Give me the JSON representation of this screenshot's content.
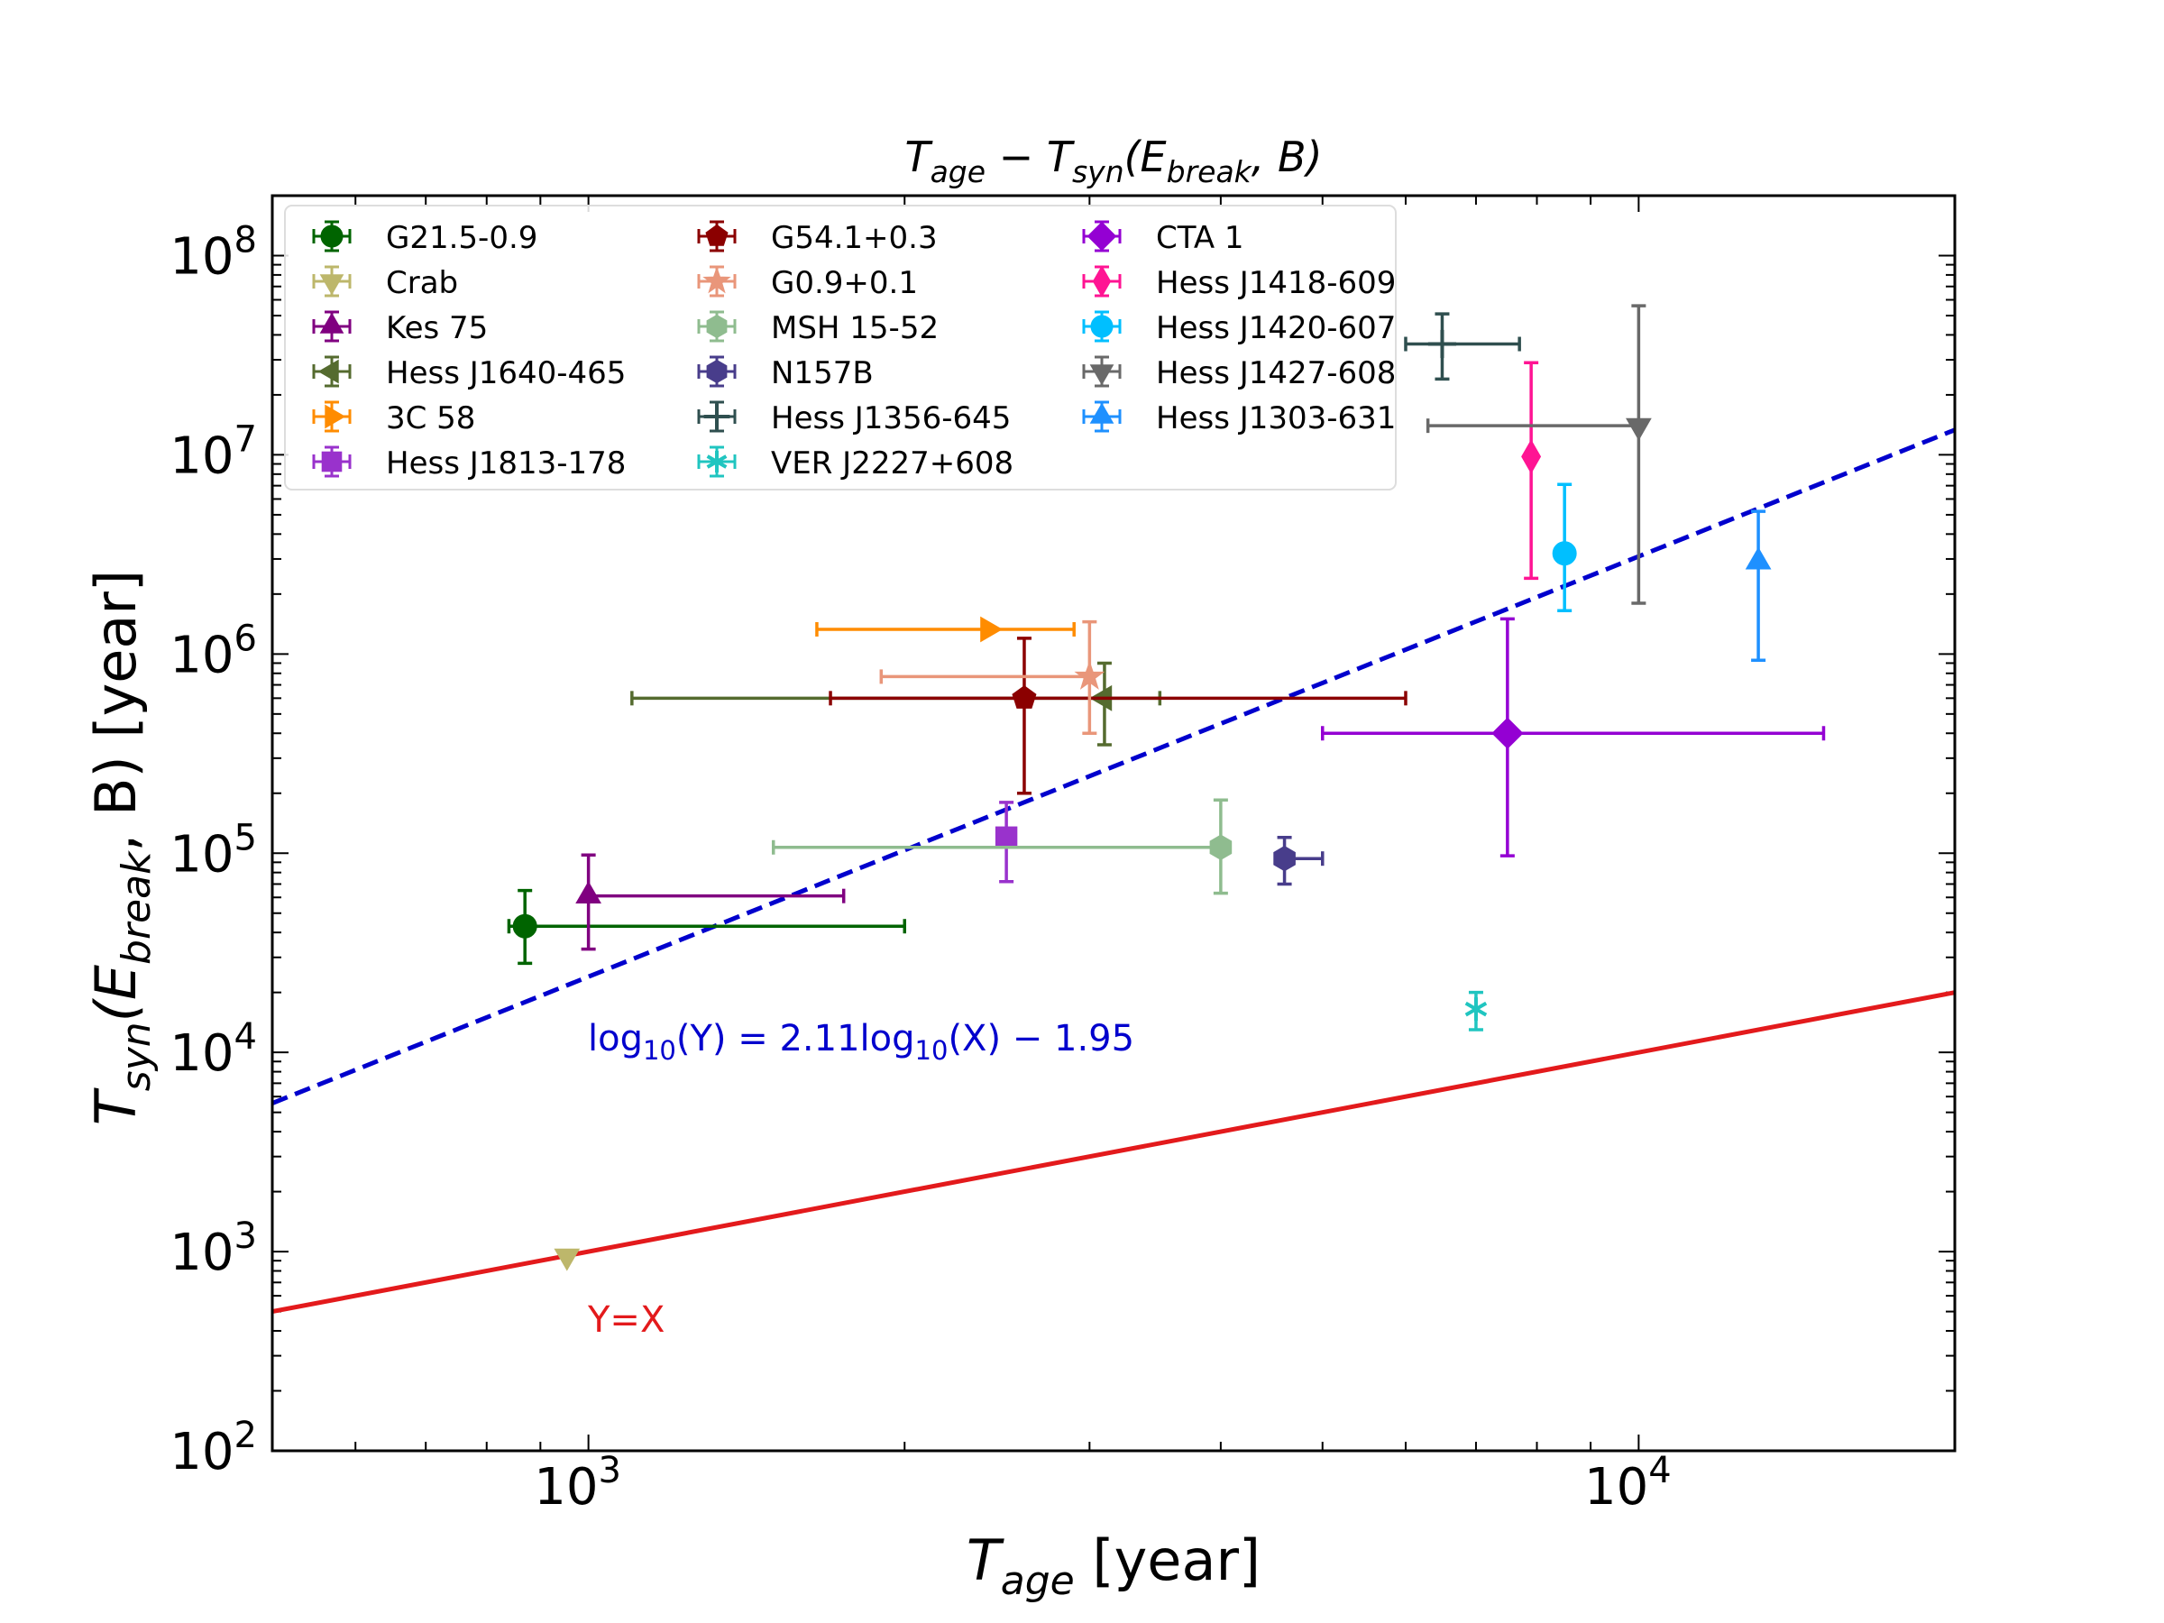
{
  "chart_data": {
    "type": "scatter",
    "title": "T_age − T_syn(E_break, B)",
    "title_parts": {
      "a": "T",
      "a_sub": "age",
      "minus": " − ",
      "b": "T",
      "b_sub": "syn",
      "args_open": "(E",
      "args_sub": "break",
      "args_close": ", B)"
    },
    "xlabel": "T_age [year]",
    "xlabel_parts": {
      "var": "T",
      "sub": "age",
      "unit": " [year]"
    },
    "ylabel": "T_syn(E_break, B) [year]",
    "ylabel_parts": {
      "var": "T",
      "sub": "syn",
      "args_open": "(E",
      "args_sub": "break",
      "args_close": ", B) [year]"
    },
    "x_scale": "log",
    "y_scale": "log",
    "xlim": [
      500,
      20000
    ],
    "ylim": [
      100,
      200000000
    ],
    "x_ticks": [
      {
        "value": 1000,
        "base": "10",
        "exp": "3"
      },
      {
        "value": 10000,
        "base": "10",
        "exp": "4"
      }
    ],
    "y_ticks": [
      {
        "value": 100,
        "base": "10",
        "exp": "2"
      },
      {
        "value": 1000,
        "base": "10",
        "exp": "3"
      },
      {
        "value": 10000,
        "base": "10",
        "exp": "4"
      },
      {
        "value": 100000,
        "base": "10",
        "exp": "5"
      },
      {
        "value": 1000000,
        "base": "10",
        "exp": "6"
      },
      {
        "value": 10000000,
        "base": "10",
        "exp": "7"
      },
      {
        "value": 100000000,
        "base": "10",
        "exp": "8"
      }
    ],
    "legend_position": "top-left",
    "series": [
      {
        "name": "G21.5-0.9",
        "color": "#006400",
        "marker": "circle",
        "x": 870,
        "y": 43000,
        "xerr": [
          840,
          2000
        ],
        "yerr": [
          28000,
          65000
        ]
      },
      {
        "name": "Crab",
        "color": "#bdb76b",
        "marker": "triangle-down",
        "x": 954,
        "y": 950,
        "xerr": null,
        "yerr": null
      },
      {
        "name": "Kes 75",
        "color": "#800080",
        "marker": "triangle-up",
        "x": 1000,
        "y": 61000,
        "xerr": [
          1000,
          1750
        ],
        "yerr": [
          33000,
          98000
        ]
      },
      {
        "name": "Hess J1640-465",
        "color": "#556b2f",
        "marker": "triangle-left",
        "x": 3100,
        "y": 600000,
        "xerr": [
          1100,
          3500
        ],
        "yerr": [
          350000,
          900000
        ]
      },
      {
        "name": "3C 58",
        "color": "#ff8c00",
        "marker": "triangle-right",
        "x": 2400,
        "y": 1330000,
        "xerr": [
          1650,
          2900
        ],
        "yerr": null
      },
      {
        "name": "Hess J1813-178",
        "color": "#9932cc",
        "marker": "square",
        "x": 2500,
        "y": 120000,
        "xerr": null,
        "yerr": [
          72000,
          180000
        ]
      },
      {
        "name": "G54.1+0.3",
        "color": "#8b0000",
        "marker": "pentagon",
        "x": 2600,
        "y": 600000,
        "xerr": [
          1700,
          6000
        ],
        "yerr": [
          200000,
          1200000
        ]
      },
      {
        "name": "G0.9+0.1",
        "color": "#e9967a",
        "marker": "star",
        "x": 3000,
        "y": 770000,
        "xerr": [
          1900,
          3000
        ],
        "yerr": [
          400000,
          1450000
        ]
      },
      {
        "name": "MSH 15-52",
        "color": "#8fbc8f",
        "marker": "hexagon",
        "x": 4000,
        "y": 107000,
        "xerr": [
          1500,
          4000
        ],
        "yerr": [
          63000,
          185000
        ]
      },
      {
        "name": "N157B",
        "color": "#483d8b",
        "marker": "hexagon",
        "x": 4600,
        "y": 94000,
        "xerr": [
          4600,
          5000
        ],
        "yerr": [
          70000,
          120000
        ]
      },
      {
        "name": "Hess J1356-645",
        "color": "#2f4f4f",
        "marker": "plus",
        "x": 6500,
        "y": 36000000,
        "xerr": [
          6000,
          7700
        ],
        "yerr": [
          24000000,
          51000000
        ]
      },
      {
        "name": "VER J2227+608",
        "color": "#20c5c0",
        "marker": "asterisk",
        "x": 7000,
        "y": 16500,
        "xerr": null,
        "yerr": [
          13000,
          20000
        ]
      },
      {
        "name": "CTA 1",
        "color": "#9400d3",
        "marker": "diamond",
        "x": 7500,
        "y": 400000,
        "xerr": [
          5000,
          15000
        ],
        "yerr": [
          97000,
          1500000
        ]
      },
      {
        "name": "Hess J1418-609",
        "color": "#ff1493",
        "marker": "thin-diamond",
        "x": 7900,
        "y": 9800000,
        "xerr": null,
        "yerr": [
          2400000,
          29000000
        ]
      },
      {
        "name": "Hess J1420-607",
        "color": "#00bfff",
        "marker": "circle",
        "x": 8500,
        "y": 3200000,
        "xerr": null,
        "yerr": [
          1650000,
          7100000
        ]
      },
      {
        "name": "Hess J1427-608",
        "color": "#696969",
        "marker": "triangle-down",
        "x": 10000,
        "y": 14000000,
        "xerr": [
          6300,
          10000
        ],
        "yerr": [
          1800000,
          56000000
        ]
      },
      {
        "name": "Hess J1303-631",
        "color": "#1e90ff",
        "marker": "triangle-up",
        "x": 13000,
        "y": 2900000,
        "xerr": null,
        "yerr": [
          930000,
          5200000
        ]
      }
    ],
    "lines": [
      {
        "name": "fit",
        "label": "log₁₀(Y) = 2.11log₁₀(X) − 1.95",
        "slope": 2.11,
        "intercept": -1.95,
        "color": "#0000cd",
        "style": "dashed"
      },
      {
        "name": "identity",
        "label": "Y=X",
        "slope": 1,
        "intercept": 0,
        "color": "#e31a1c",
        "style": "solid"
      }
    ],
    "annotations": [
      {
        "name": "fit-equation",
        "text_parts": {
          "pre": "log",
          "sub1": "10",
          "mid": "(Y) = 2.11log",
          "sub2": "10",
          "post": "(X) − 1.95"
        },
        "color": "#0000cd"
      },
      {
        "name": "identity-label",
        "text": "Y=X",
        "color": "#e31a1c"
      }
    ]
  }
}
